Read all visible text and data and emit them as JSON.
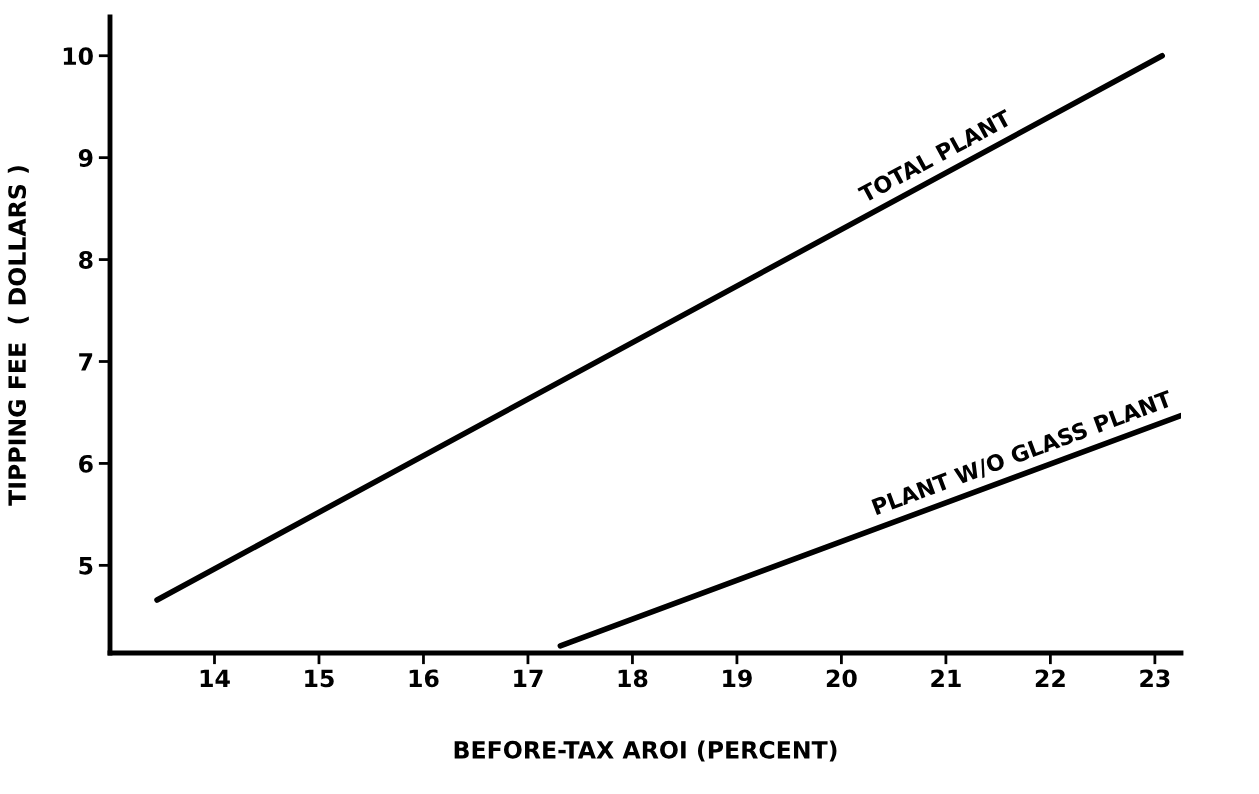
{
  "chart_data": {
    "type": "line",
    "xlabel": "BEFORE-TAX AROI (PERCENT)",
    "ylabel": "TIPPING FEE  ( DOLLARS )",
    "series": [
      {
        "name": "TOTAL PLANT",
        "color": "#000000",
        "x": [
          13.45,
          23.07
        ],
        "values": [
          4.66,
          10.0
        ]
      },
      {
        "name": "PLANT W/O GLASS PLANT",
        "color": "#000000",
        "x": [
          17.31,
          23.25
        ],
        "values": [
          4.21,
          6.47
        ]
      }
    ],
    "xlim": [
      13.0,
      23.25
    ],
    "ylim": [
      4.14,
      10.38
    ],
    "xticks": [
      14,
      15,
      16,
      17,
      18,
      19,
      20,
      21,
      22,
      23
    ],
    "yticks": [
      5,
      6,
      7,
      8,
      9,
      10
    ],
    "grid": false,
    "legend": false,
    "marker": "none",
    "line_style": "solid"
  }
}
